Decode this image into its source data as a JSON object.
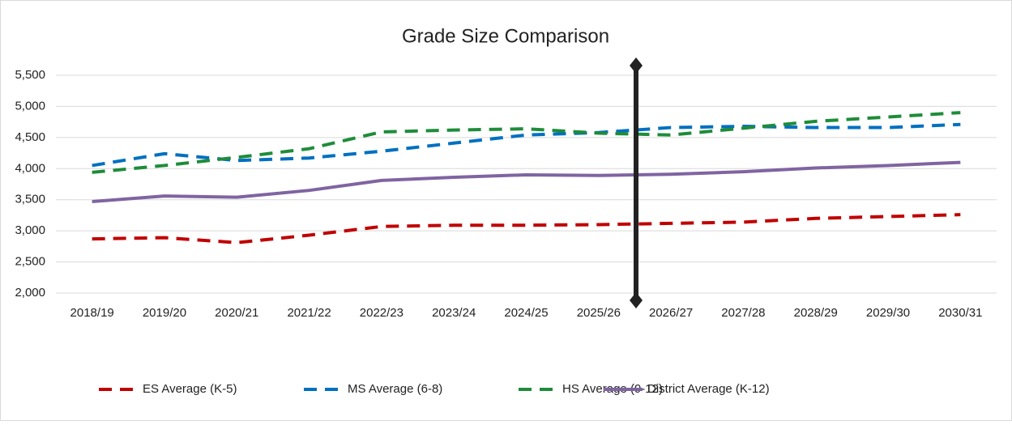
{
  "chart_data": {
    "type": "line",
    "title": "Grade Size Comparison",
    "categories": [
      "2018/19",
      "2019/20",
      "2020/21",
      "2021/22",
      "2022/23",
      "2023/24",
      "2024/25",
      "2025/26",
      "2026/27",
      "2027/28",
      "2028/29",
      "2029/30",
      "2030/31"
    ],
    "series": [
      {
        "name": "ES Average (K-5)",
        "color": "#c00000",
        "dashed": true,
        "values": [
          2870,
          2890,
          2810,
          2930,
          3070,
          3090,
          3090,
          3100,
          3120,
          3140,
          3200,
          3230,
          3260
        ]
      },
      {
        "name": "MS Average (6-8)",
        "color": "#0070c0",
        "dashed": true,
        "values": [
          4050,
          4240,
          4130,
          4170,
          4280,
          4410,
          4540,
          4580,
          4660,
          4680,
          4660,
          4660,
          4710
        ]
      },
      {
        "name": "HS Average (9-12)",
        "color": "#1e8c3a",
        "dashed": true,
        "values": [
          3940,
          4050,
          4180,
          4320,
          4590,
          4620,
          4640,
          4570,
          4540,
          4650,
          4760,
          4830,
          4900
        ]
      },
      {
        "name": "District Average (K-12)",
        "color": "#8064a2",
        "dashed": false,
        "values": [
          3470,
          3560,
          3540,
          3650,
          3810,
          3860,
          3900,
          3890,
          3910,
          3950,
          4010,
          4050,
          4100
        ]
      }
    ],
    "ylim": [
      2000,
      5500
    ],
    "yticks": [
      {
        "value": 2000,
        "label": "2,000"
      },
      {
        "value": 2500,
        "label": "2,500"
      },
      {
        "value": 3000,
        "label": "3,000"
      },
      {
        "value": 3500,
        "label": "3,500"
      },
      {
        "value": 4000,
        "label": "4,000"
      },
      {
        "value": 4500,
        "label": "4,500"
      },
      {
        "value": 5000,
        "label": "5,000"
      },
      {
        "value": 5500,
        "label": "5,500"
      }
    ],
    "grid": true,
    "legend": "bottom"
  }
}
